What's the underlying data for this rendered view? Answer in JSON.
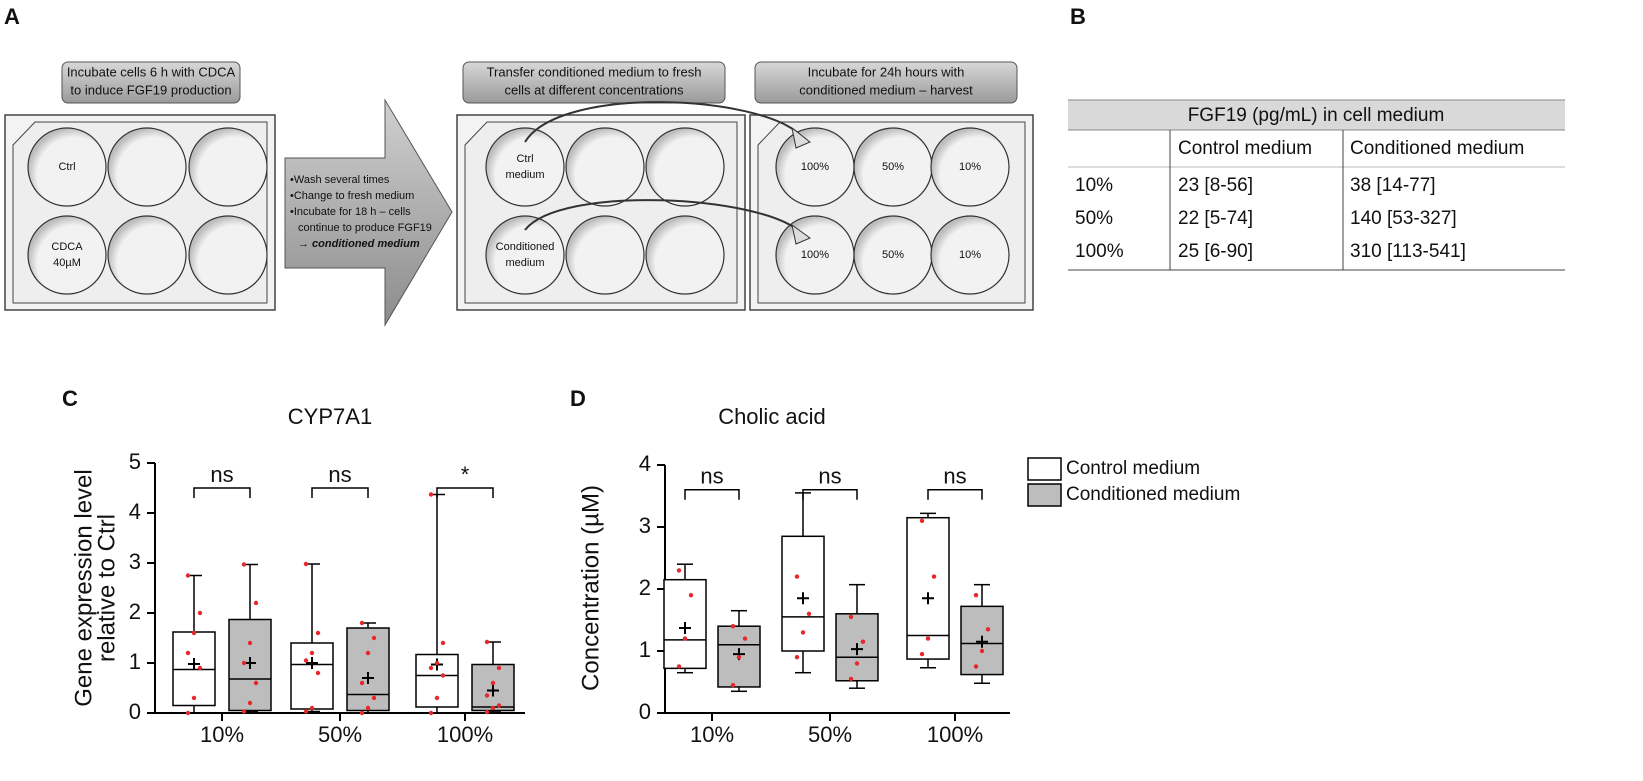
{
  "panel_a": {
    "label": "A",
    "steps": [
      [
        "Incubate cells 6 h with CDCA",
        "to induce FGF19 production"
      ],
      [
        "Transfer conditioned medium to fresh",
        "cells at different concentrations"
      ],
      [
        "Incubate for 24h hours with",
        "conditioned medium – harvest"
      ]
    ],
    "arrow_text": [
      "•Wash several times",
      "•Change to fresh medium",
      "•Incubate for 18 h – cells",
      "continue to produce FGF19",
      "→ conditioned medium"
    ],
    "plate1_wells": [
      [
        "Ctrl"
      ],
      [
        "CDCA",
        "40µM"
      ]
    ],
    "plate2_wells": [
      [
        "Ctrl",
        "medium"
      ],
      [
        "Conditioned",
        "medium"
      ]
    ],
    "plate3_wells": [
      "100%",
      "50%",
      "10%",
      "100%",
      "50%",
      "10%"
    ]
  },
  "panel_b": {
    "label": "B",
    "title": "FGF19 (pg/mL) in cell medium",
    "columns": [
      "Control medium",
      "Conditioned medium"
    ],
    "rows": [
      [
        "10%",
        "23 [8-56]",
        "38 [14-77]"
      ],
      [
        "50%",
        "22 [5-74]",
        "140 [53-327]"
      ],
      [
        "100%",
        "25 [6-90]",
        "310 [113-541]"
      ]
    ]
  },
  "chart_data": [
    {
      "type": "box",
      "panel": "C",
      "title": "CYP7A1",
      "y_label": [
        "Gene expression level",
        "relative to Ctrl"
      ],
      "categories": [
        "10%",
        "50%",
        "100%"
      ],
      "annotations": [
        "ns",
        "ns",
        "*"
      ],
      "ylim": [
        0,
        5
      ],
      "yticks": [
        0,
        1,
        2,
        3,
        4,
        5
      ],
      "series": [
        {
          "color": "#ffffff",
          "boxes": [
            {
              "min": 0,
              "q1": 0.15,
              "median": 0.87,
              "q3": 1.62,
              "max": 2.75,
              "mean": 0.98
            },
            {
              "min": 0.03,
              "q1": 0.08,
              "median": 0.97,
              "q3": 1.4,
              "max": 2.98,
              "mean": 1.0
            },
            {
              "min": 0,
              "q1": 0.12,
              "median": 0.75,
              "q3": 1.17,
              "max": 4.37,
              "mean": 0.97
            }
          ],
          "points": [
            [
              0,
              0.3,
              0.9,
              1.2,
              1.6,
              2.0,
              2.75
            ],
            [
              0.03,
              0.1,
              0.8,
              1.05,
              1.2,
              1.6,
              2.98
            ],
            [
              0,
              0.3,
              0.75,
              0.9,
              1.0,
              1.4,
              4.37
            ]
          ]
        },
        {
          "color": "#bdbdbd",
          "boxes": [
            {
              "min": 0.03,
              "q1": 0.05,
              "median": 0.68,
              "q3": 1.87,
              "max": 2.97,
              "mean": 1.0
            },
            {
              "min": 0,
              "q1": 0.05,
              "median": 0.37,
              "q3": 1.7,
              "max": 1.8,
              "mean": 0.7
            },
            {
              "min": 0.02,
              "q1": 0.05,
              "median": 0.12,
              "q3": 0.97,
              "max": 1.42,
              "mean": 0.45
            }
          ],
          "points": [
            [
              0.03,
              0.2,
              0.6,
              1.0,
              1.4,
              2.2,
              2.97
            ],
            [
              0,
              0.1,
              0.3,
              0.6,
              1.2,
              1.5,
              1.8
            ],
            [
              0.02,
              0.1,
              0.15,
              0.35,
              0.6,
              0.9,
              1.42
            ]
          ]
        }
      ]
    },
    {
      "type": "box",
      "panel": "D",
      "title": "Cholic acid",
      "y_label": [
        "Concentration (µM)"
      ],
      "categories": [
        "10%",
        "50%",
        "100%"
      ],
      "annotations": [
        "ns",
        "ns",
        "ns"
      ],
      "ylim": [
        0,
        4
      ],
      "yticks": [
        0,
        1,
        2,
        3,
        4
      ],
      "legend": "right",
      "series": [
        {
          "name": "Control medium",
          "color": "#ffffff",
          "boxes": [
            {
              "min": 0.65,
              "q1": 0.72,
              "median": 1.18,
              "q3": 2.15,
              "max": 2.4,
              "mean": 1.37
            },
            {
              "min": 0.65,
              "q1": 1.0,
              "median": 1.55,
              "q3": 2.85,
              "max": 3.55,
              "mean": 1.85
            },
            {
              "min": 0.73,
              "q1": 0.87,
              "median": 1.25,
              "q3": 3.15,
              "max": 3.22,
              "mean": 1.85
            }
          ],
          "points": [
            [
              0.75,
              1.2,
              1.9,
              2.3
            ],
            [
              0.9,
              1.3,
              1.6,
              2.2
            ],
            [
              0.95,
              1.2,
              2.2,
              3.1
            ]
          ]
        },
        {
          "name": "Conditioned medium",
          "color": "#bdbdbd",
          "boxes": [
            {
              "min": 0.35,
              "q1": 0.42,
              "median": 1.1,
              "q3": 1.4,
              "max": 1.65,
              "mean": 0.95
            },
            {
              "min": 0.4,
              "q1": 0.52,
              "median": 0.9,
              "q3": 1.6,
              "max": 2.07,
              "mean": 1.03
            },
            {
              "min": 0.48,
              "q1": 0.62,
              "median": 1.12,
              "q3": 1.72,
              "max": 2.07,
              "mean": 1.15
            }
          ],
          "points": [
            [
              0.45,
              0.9,
              1.2,
              1.4
            ],
            [
              0.55,
              0.8,
              1.15,
              1.55
            ],
            [
              0.75,
              1.0,
              1.35,
              1.9
            ]
          ]
        }
      ]
    }
  ]
}
